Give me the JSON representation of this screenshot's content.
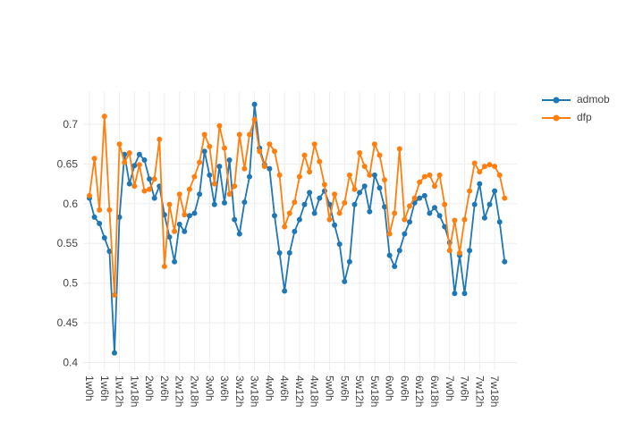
{
  "colors": {
    "admob": "#1f77b4",
    "dfp": "#ff7f0e",
    "grid": "#ededed",
    "tick_text": "#444444",
    "background": "#ffffff"
  },
  "legend": {
    "items": [
      {
        "label": "admob",
        "color": "#1f77b4"
      },
      {
        "label": "dfp",
        "color": "#ff7f0e"
      }
    ]
  },
  "chart_data": {
    "type": "line",
    "mode": "lines+markers",
    "title": "",
    "xlabel": "",
    "ylabel": "",
    "grid": true,
    "legend_position": "right",
    "x_range_hours": [
      -3,
      171
    ],
    "y_range": [
      0.389,
      0.738
    ],
    "y_ticks": [
      0.4,
      0.45,
      0.5,
      0.55,
      0.6,
      0.65,
      0.7
    ],
    "y_tick_labels": [
      "0.4",
      "0.45",
      "0.5",
      "0.55",
      "0.6",
      "0.65",
      "0.7"
    ],
    "x_tick_hours": [
      0,
      6,
      12,
      18,
      24,
      30,
      36,
      42,
      48,
      54,
      60,
      66,
      72,
      78,
      84,
      90,
      96,
      102,
      108,
      114,
      120,
      126,
      132,
      138,
      144,
      150,
      156,
      162
    ],
    "x_tick_labels": [
      "1w0h",
      "1w6h",
      "1w12h",
      "1w18h",
      "2w0h",
      "2w6h",
      "2w12h",
      "2w18h",
      "3w0h",
      "3w6h",
      "3w12h",
      "3w18h",
      "4w0h",
      "4w6h",
      "4w12h",
      "4w18h",
      "5w0h",
      "5w6h",
      "5w12h",
      "5w18h",
      "6w0h",
      "6w6h",
      "6w12h",
      "6w18h",
      "7w0h",
      "7w6h",
      "7w12h",
      "7w18h"
    ],
    "x_hours": [
      0,
      2,
      4,
      6,
      8,
      10,
      12,
      14,
      16,
      18,
      20,
      22,
      24,
      26,
      28,
      30,
      32,
      34,
      36,
      38,
      40,
      42,
      44,
      46,
      48,
      50,
      52,
      54,
      56,
      58,
      60,
      62,
      64,
      66,
      68,
      70,
      72,
      74,
      76,
      78,
      80,
      82,
      84,
      86,
      88,
      90,
      92,
      94,
      96,
      98,
      100,
      102,
      104,
      106,
      108,
      110,
      112,
      114,
      116,
      118,
      120,
      122,
      124,
      126,
      128,
      130,
      132,
      134,
      136,
      138,
      140,
      142,
      144,
      146,
      148,
      150,
      152,
      154,
      156,
      158,
      160,
      162,
      164,
      166
    ],
    "series": [
      {
        "name": "admob",
        "color": "#1f77b4",
        "values": [
          0.607,
          0.583,
          0.575,
          0.557,
          0.54,
          0.412,
          0.583,
          0.662,
          0.625,
          0.648,
          0.662,
          0.655,
          0.631,
          0.607,
          0.622,
          0.586,
          0.558,
          0.527,
          0.574,
          0.565,
          0.585,
          0.588,
          0.612,
          0.666,
          0.636,
          0.599,
          0.647,
          0.601,
          0.655,
          0.58,
          0.562,
          0.602,
          0.634,
          0.725,
          0.67,
          0.649,
          0.644,
          0.585,
          0.538,
          0.49,
          0.538,
          0.565,
          0.58,
          0.599,
          0.614,
          0.588,
          0.607,
          0.616,
          0.599,
          0.573,
          0.549,
          0.502,
          0.527,
          0.599,
          0.614,
          0.622,
          0.59,
          0.636,
          0.62,
          0.596,
          0.535,
          0.521,
          0.541,
          0.562,
          0.577,
          0.601,
          0.607,
          0.61,
          0.588,
          0.595,
          0.585,
          0.571,
          0.551,
          0.487,
          0.535,
          0.487,
          0.541,
          0.599,
          0.625,
          0.582,
          0.599,
          0.616,
          0.577,
          0.527
        ]
      },
      {
        "name": "dfp",
        "color": "#ff7f0e",
        "values": [
          0.61,
          0.657,
          0.592,
          0.71,
          0.592,
          0.485,
          0.675,
          0.652,
          0.664,
          0.622,
          0.649,
          0.616,
          0.618,
          0.631,
          0.681,
          0.521,
          0.599,
          0.565,
          0.612,
          0.586,
          0.618,
          0.634,
          0.652,
          0.687,
          0.672,
          0.625,
          0.698,
          0.67,
          0.612,
          0.622,
          0.687,
          0.644,
          0.687,
          0.706,
          0.666,
          0.647,
          0.675,
          0.666,
          0.636,
          0.571,
          0.588,
          0.602,
          0.634,
          0.661,
          0.64,
          0.675,
          0.653,
          0.624,
          0.58,
          0.612,
          0.588,
          0.601,
          0.636,
          0.618,
          0.664,
          0.647,
          0.636,
          0.675,
          0.661,
          0.63,
          0.562,
          0.588,
          0.669,
          0.58,
          0.597,
          0.607,
          0.627,
          0.634,
          0.636,
          0.622,
          0.636,
          0.599,
          0.541,
          0.579,
          0.538,
          0.58,
          0.616,
          0.651,
          0.64,
          0.647,
          0.649,
          0.647,
          0.636,
          0.607
        ]
      }
    ]
  }
}
